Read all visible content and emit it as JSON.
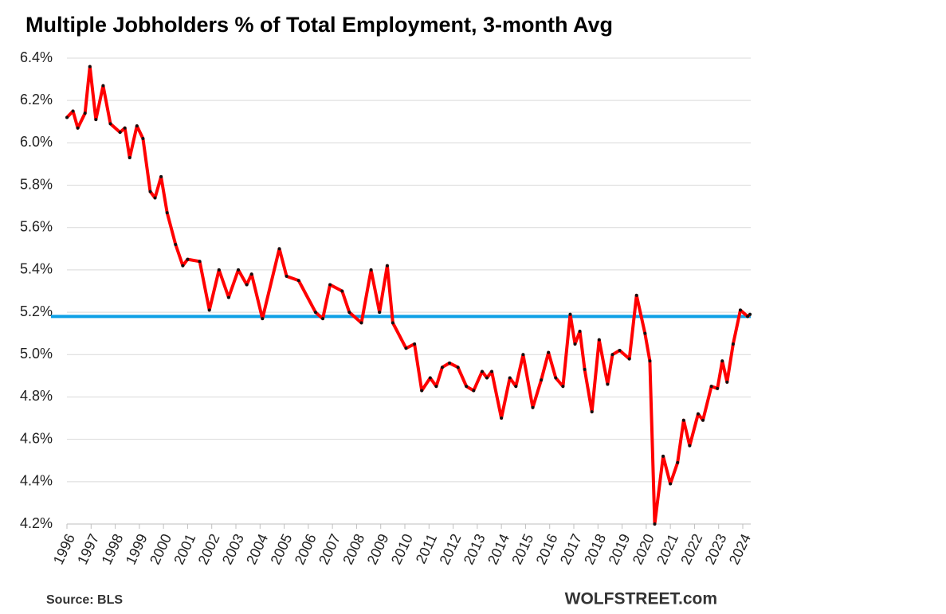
{
  "chart_data": {
    "type": "line",
    "title": "Multiple Jobholders % of Total Employment, 3-month Avg",
    "source": "Source:  BLS",
    "brand": "WOLFSTREET.com",
    "x": [
      1996.0,
      1996.25,
      1996.45,
      1996.75,
      1996.95,
      1997.2,
      1997.5,
      1997.8,
      1998.2,
      1998.4,
      1998.6,
      1998.9,
      1999.15,
      1999.45,
      1999.65,
      1999.9,
      2000.15,
      2000.5,
      2000.8,
      2001.0,
      2001.5,
      2001.9,
      2002.3,
      2002.7,
      2003.1,
      2003.45,
      2003.65,
      2004.1,
      2004.8,
      2005.1,
      2005.6,
      2006.3,
      2006.6,
      2006.9,
      2007.4,
      2007.7,
      2008.2,
      2008.6,
      2008.95,
      2009.27,
      2009.5,
      2010.05,
      2010.4,
      2010.7,
      2011.05,
      2011.3,
      2011.55,
      2011.85,
      2012.2,
      2012.55,
      2012.85,
      2013.2,
      2013.4,
      2013.6,
      2014.0,
      2014.35,
      2014.6,
      2014.9,
      2015.3,
      2015.65,
      2015.95,
      2016.25,
      2016.55,
      2016.85,
      2017.05,
      2017.25,
      2017.45,
      2017.75,
      2018.05,
      2018.4,
      2018.6,
      2018.9,
      2019.3,
      2019.6,
      2019.95,
      2020.15,
      2020.35,
      2020.7,
      2021.0,
      2021.3,
      2021.55,
      2021.8,
      2022.15,
      2022.35,
      2022.7,
      2022.95,
      2023.15,
      2023.35,
      2023.6,
      2023.9,
      2024.2,
      2024.3
    ],
    "series": [
      {
        "name": "Multiple Jobholders %",
        "color": "#ff0000",
        "marker_color": "#111111",
        "values": [
          6.12,
          6.15,
          6.07,
          6.14,
          6.36,
          6.11,
          6.27,
          6.09,
          6.05,
          6.07,
          5.93,
          6.08,
          6.02,
          5.77,
          5.74,
          5.84,
          5.67,
          5.52,
          5.42,
          5.45,
          5.44,
          5.21,
          5.4,
          5.27,
          5.4,
          5.33,
          5.38,
          5.17,
          5.5,
          5.37,
          5.35,
          5.2,
          5.17,
          5.33,
          5.3,
          5.2,
          5.15,
          5.4,
          5.2,
          5.42,
          5.15,
          5.03,
          5.05,
          4.83,
          4.89,
          4.85,
          4.94,
          4.96,
          4.94,
          4.85,
          4.83,
          4.92,
          4.89,
          4.92,
          4.7,
          4.89,
          4.85,
          5.0,
          4.75,
          4.88,
          5.01,
          4.89,
          4.85,
          5.19,
          5.05,
          5.11,
          4.93,
          4.73,
          5.07,
          4.86,
          5.0,
          5.02,
          4.98,
          5.28,
          5.1,
          4.97,
          4.2,
          4.52,
          4.39,
          4.49,
          4.69,
          4.57,
          4.72,
          4.69,
          4.85,
          4.84,
          4.97,
          4.87,
          5.05,
          5.21,
          5.18,
          5.19
        ]
      }
    ],
    "reference_line": {
      "value": 5.18,
      "color": "#0ea0e6"
    },
    "xlim": [
      1996,
      2024.33
    ],
    "xticks": [
      1996,
      1997,
      1998,
      1999,
      2000,
      2001,
      2002,
      2003,
      2004,
      2005,
      2006,
      2007,
      2008,
      2009,
      2010,
      2011,
      2012,
      2013,
      2014,
      2015,
      2016,
      2017,
      2018,
      2019,
      2020,
      2021,
      2022,
      2023,
      2024
    ],
    "ylim": [
      4.2,
      6.4
    ],
    "yticks": [
      {
        "value": 4.2,
        "label": "4.2%"
      },
      {
        "value": 4.4,
        "label": "4.4%"
      },
      {
        "value": 4.6,
        "label": "4.6%"
      },
      {
        "value": 4.8,
        "label": "4.8%"
      },
      {
        "value": 5.0,
        "label": "5.0%"
      },
      {
        "value": 5.2,
        "label": "5.2%"
      },
      {
        "value": 5.4,
        "label": "5.4%"
      },
      {
        "value": 5.6,
        "label": "5.6%"
      },
      {
        "value": 5.8,
        "label": "5.8%"
      },
      {
        "value": 6.0,
        "label": "6.0%"
      },
      {
        "value": 6.2,
        "label": "6.2%"
      },
      {
        "value": 6.4,
        "label": "6.4%"
      }
    ],
    "grid": true
  }
}
